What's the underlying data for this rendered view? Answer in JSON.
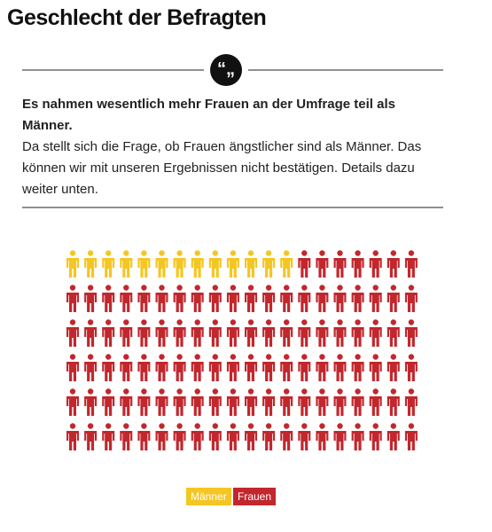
{
  "quote_mark": "“„",
  "intro": {
    "lead": "Es nahmen wesentlich mehr Frauen an der Umfrage teil als Männer.",
    "body": "Da stellt sich die Frage, ob Frauen ängstlicher sind als Männer. Das können wir mit unseren Ergebnissen nicht bestätigen. Details dazu weiter unten."
  },
  "chart_data": {
    "type": "pictogram",
    "title": "Geschlecht der Befragten",
    "series": [
      {
        "name": "Männer",
        "color": "#f4c623",
        "values": [
          13
        ]
      },
      {
        "name": "Frauen",
        "color": "#c1272d",
        "values": [
          107
        ]
      }
    ]
  }
}
